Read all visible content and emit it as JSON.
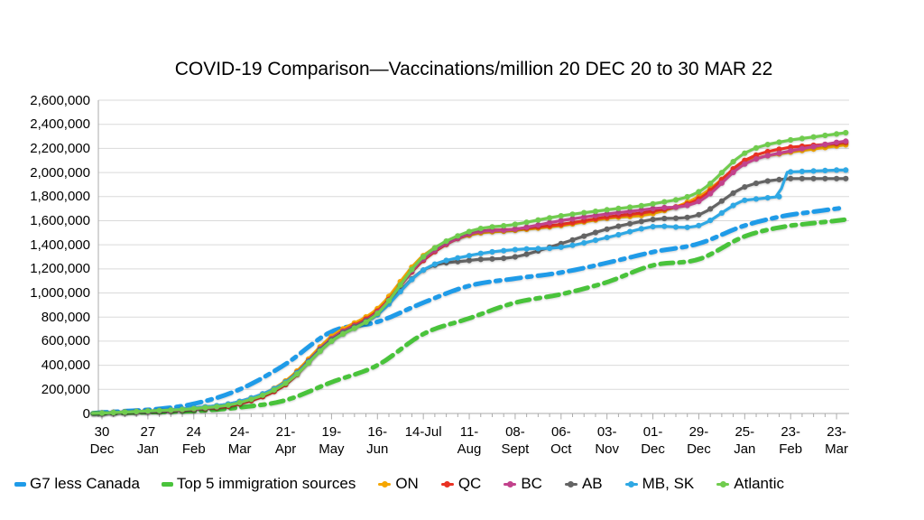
{
  "title": "COVID-19 Comparison—Vaccinations/million 20 DEC 20 to 30 MAR 22",
  "chart_data": {
    "type": "line",
    "title": "COVID-19 Comparison—Vaccinations/million 20 DEC 20 to 30 MAR 22",
    "xlabel": "",
    "ylabel": "",
    "grid": true,
    "legend_position": "bottom",
    "y_axis": {
      "min": 0,
      "max": 2600000,
      "step": 200000,
      "tick_labels": [
        "0",
        "200,000",
        "400,000",
        "600,000",
        "800,000",
        "1,000,000",
        "1,200,000",
        "1,400,000",
        "1,600,000",
        "1,800,000",
        "2,000,000",
        "2,200,000",
        "2,400,000",
        "2,600,000"
      ]
    },
    "x_axis": {
      "weeks_per_tick": 4,
      "tick_labels": [
        [
          "30",
          "Dec"
        ],
        [
          "27",
          "Jan"
        ],
        [
          "24",
          "Feb"
        ],
        [
          "24-",
          "Mar"
        ],
        [
          "21-",
          "Apr"
        ],
        [
          "19-",
          "May"
        ],
        [
          "16-",
          "Jun"
        ],
        [
          "14-Jul",
          ""
        ],
        [
          "11-",
          "Aug"
        ],
        [
          "08-",
          "Sept"
        ],
        [
          "06-",
          "Oct"
        ],
        [
          "03-",
          "Nov"
        ],
        [
          "01-",
          "Dec"
        ],
        [
          "29-",
          "Dec"
        ],
        [
          "25-",
          "Jan"
        ],
        [
          "23-",
          "Feb"
        ],
        [
          "23-",
          "Mar"
        ]
      ]
    },
    "series": [
      {
        "name": "G7 less Canada",
        "color": "#1F9BE8",
        "dash": "16 7 5 7",
        "width": 5,
        "markers": false,
        "points": [
          [
            -0.8,
            2000
          ],
          [
            0,
            8000
          ],
          [
            4,
            30000
          ],
          [
            8,
            80000
          ],
          [
            12,
            200000
          ],
          [
            16,
            410000
          ],
          [
            20,
            680000
          ],
          [
            24,
            760000
          ],
          [
            28,
            920000
          ],
          [
            32,
            1060000
          ],
          [
            36,
            1120000
          ],
          [
            40,
            1170000
          ],
          [
            44,
            1250000
          ],
          [
            48,
            1340000
          ],
          [
            52,
            1410000
          ],
          [
            56,
            1560000
          ],
          [
            60,
            1650000
          ],
          [
            64,
            1700000
          ],
          [
            64.8,
            1710000
          ]
        ]
      },
      {
        "name": "Top 5 immigration sources",
        "color": "#49C33B",
        "dash": "14 7 5 7",
        "width": 5,
        "markers": false,
        "points": [
          [
            -0.8,
            1000
          ],
          [
            0,
            2000
          ],
          [
            4,
            10000
          ],
          [
            8,
            20000
          ],
          [
            12,
            50000
          ],
          [
            16,
            110000
          ],
          [
            20,
            260000
          ],
          [
            24,
            400000
          ],
          [
            28,
            660000
          ],
          [
            32,
            790000
          ],
          [
            36,
            920000
          ],
          [
            40,
            990000
          ],
          [
            44,
            1090000
          ],
          [
            48,
            1230000
          ],
          [
            52,
            1280000
          ],
          [
            56,
            1470000
          ],
          [
            60,
            1560000
          ],
          [
            64,
            1600000
          ],
          [
            64.8,
            1610000
          ]
        ]
      },
      {
        "name": "ON",
        "color": "#F5A600",
        "width": 3.2,
        "markers": true,
        "points": [
          [
            -0.8,
            1000
          ],
          [
            0,
            5000
          ],
          [
            4,
            20000
          ],
          [
            8,
            40000
          ],
          [
            12,
            90000
          ],
          [
            16,
            270000
          ],
          [
            20,
            640000
          ],
          [
            24,
            870000
          ],
          [
            28,
            1310000
          ],
          [
            32,
            1480000
          ],
          [
            36,
            1520000
          ],
          [
            40,
            1560000
          ],
          [
            44,
            1620000
          ],
          [
            48,
            1660000
          ],
          [
            52,
            1800000
          ],
          [
            56,
            2080000
          ],
          [
            60,
            2170000
          ],
          [
            64,
            2220000
          ],
          [
            64.8,
            2230000
          ]
        ]
      },
      {
        "name": "QC",
        "color": "#E93223",
        "width": 3.2,
        "markers": true,
        "points": [
          [
            -0.8,
            1000
          ],
          [
            0,
            4000
          ],
          [
            4,
            20000
          ],
          [
            8,
            35000
          ],
          [
            12,
            80000
          ],
          [
            16,
            240000
          ],
          [
            20,
            620000
          ],
          [
            24,
            850000
          ],
          [
            28,
            1270000
          ],
          [
            32,
            1490000
          ],
          [
            36,
            1530000
          ],
          [
            40,
            1570000
          ],
          [
            44,
            1630000
          ],
          [
            48,
            1680000
          ],
          [
            52,
            1780000
          ],
          [
            56,
            2100000
          ],
          [
            60,
            2210000
          ],
          [
            64,
            2240000
          ],
          [
            64.8,
            2250000
          ]
        ]
      },
      {
        "name": "BC",
        "color": "#C2428C",
        "width": 3.2,
        "markers": true,
        "points": [
          [
            -0.8,
            1000
          ],
          [
            0,
            3000
          ],
          [
            4,
            15000
          ],
          [
            8,
            35000
          ],
          [
            12,
            90000
          ],
          [
            16,
            260000
          ],
          [
            20,
            620000
          ],
          [
            24,
            840000
          ],
          [
            28,
            1280000
          ],
          [
            32,
            1490000
          ],
          [
            36,
            1530000
          ],
          [
            40,
            1600000
          ],
          [
            44,
            1655000
          ],
          [
            48,
            1700000
          ],
          [
            52,
            1760000
          ],
          [
            56,
            2070000
          ],
          [
            60,
            2180000
          ],
          [
            64,
            2250000
          ],
          [
            64.8,
            2260000
          ]
        ]
      },
      {
        "name": "AB",
        "color": "#646464",
        "width": 3.2,
        "markers": true,
        "points": [
          [
            -0.8,
            1000
          ],
          [
            0,
            5000
          ],
          [
            4,
            20000
          ],
          [
            8,
            45000
          ],
          [
            12,
            100000
          ],
          [
            16,
            260000
          ],
          [
            20,
            610000
          ],
          [
            24,
            830000
          ],
          [
            28,
            1190000
          ],
          [
            32,
            1270000
          ],
          [
            36,
            1300000
          ],
          [
            40,
            1410000
          ],
          [
            44,
            1530000
          ],
          [
            48,
            1610000
          ],
          [
            52,
            1650000
          ],
          [
            56,
            1880000
          ],
          [
            60,
            1950000
          ],
          [
            64,
            1950000
          ],
          [
            64.8,
            1950000
          ]
        ]
      },
      {
        "name": "MB, SK",
        "color": "#2FA8E4",
        "width": 3.2,
        "markers": true,
        "points": [
          [
            -0.8,
            1000
          ],
          [
            0,
            5000
          ],
          [
            4,
            20000
          ],
          [
            8,
            45000
          ],
          [
            12,
            100000
          ],
          [
            16,
            260000
          ],
          [
            20,
            600000
          ],
          [
            24,
            820000
          ],
          [
            28,
            1190000
          ],
          [
            32,
            1310000
          ],
          [
            36,
            1360000
          ],
          [
            40,
            1380000
          ],
          [
            44,
            1460000
          ],
          [
            48,
            1550000
          ],
          [
            52,
            1560000
          ],
          [
            56,
            1770000
          ],
          [
            58,
            1790000
          ],
          [
            59,
            1800000
          ],
          [
            59.6,
            2000000
          ],
          [
            60,
            2005000
          ],
          [
            64,
            2020000
          ],
          [
            64.8,
            2020000
          ]
        ]
      },
      {
        "name": "Atlantic",
        "color": "#70CC4E",
        "width": 3.2,
        "markers": true,
        "points": [
          [
            -0.8,
            1000
          ],
          [
            0,
            3000
          ],
          [
            4,
            20000
          ],
          [
            8,
            40000
          ],
          [
            12,
            90000
          ],
          [
            16,
            250000
          ],
          [
            20,
            600000
          ],
          [
            24,
            830000
          ],
          [
            28,
            1300000
          ],
          [
            32,
            1510000
          ],
          [
            36,
            1570000
          ],
          [
            40,
            1640000
          ],
          [
            44,
            1690000
          ],
          [
            48,
            1740000
          ],
          [
            52,
            1840000
          ],
          [
            56,
            2160000
          ],
          [
            60,
            2270000
          ],
          [
            64,
            2320000
          ],
          [
            64.8,
            2330000
          ]
        ]
      }
    ]
  }
}
